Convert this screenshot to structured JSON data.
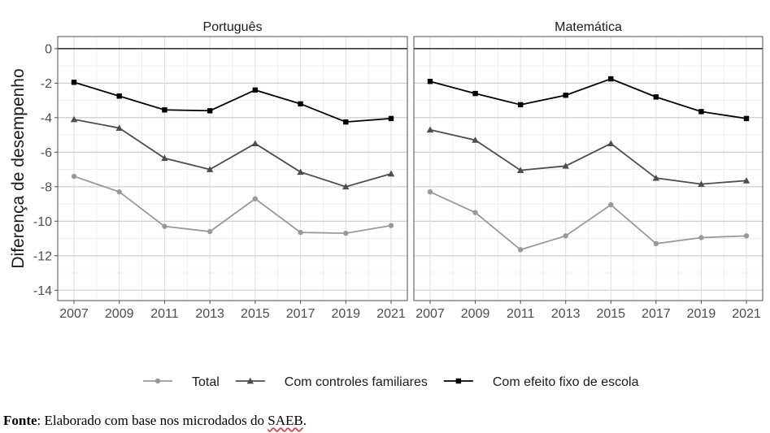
{
  "chart_data": {
    "type": "line",
    "ylabel": "Diferença de desempenho",
    "ylim": [
      -14.6,
      0.7
    ],
    "yticks": [
      0,
      -2,
      -4,
      -6,
      -8,
      -10,
      -12,
      -14
    ],
    "ytick_labels": [
      "0",
      "-2",
      "-4",
      "-6",
      "-8",
      "-10",
      "-12",
      "-14"
    ],
    "x": [
      2007,
      2009,
      2011,
      2013,
      2015,
      2017,
      2019,
      2021
    ],
    "xtick_labels": [
      "2007",
      "2009",
      "2011",
      "2013",
      "2015",
      "2017",
      "2019",
      "2021"
    ],
    "reference_line": 0,
    "grid": true,
    "legend_position": "bottom",
    "legend": [
      {
        "label": "Total",
        "color": "#999999",
        "marker": "circle"
      },
      {
        "label": "Com controles familiares",
        "color": "#4d4d4d",
        "marker": "triangle"
      },
      {
        "label": "Com efeito fixo de escola",
        "color": "#000000",
        "marker": "square"
      }
    ],
    "panels": [
      {
        "title": "Português",
        "series": [
          {
            "name": "Total",
            "values": [
              -7.4,
              -8.3,
              -10.3,
              -10.6,
              -8.7,
              -10.65,
              -10.7,
              -10.25
            ]
          },
          {
            "name": "Com controles familiares",
            "values": [
              -4.1,
              -4.6,
              -6.35,
              -7.0,
              -5.5,
              -7.15,
              -8.0,
              -7.25
            ]
          },
          {
            "name": "Com efeito fixo de escola",
            "values": [
              -1.95,
              -2.75,
              -3.55,
              -3.6,
              -2.4,
              -3.2,
              -4.25,
              -4.05
            ]
          }
        ]
      },
      {
        "title": "Matemática",
        "series": [
          {
            "name": "Total",
            "values": [
              -8.3,
              -9.5,
              -11.65,
              -10.85,
              -9.05,
              -11.3,
              -10.95,
              -10.85
            ]
          },
          {
            "name": "Com controles familiares",
            "values": [
              -4.7,
              -5.3,
              -7.05,
              -6.8,
              -5.5,
              -7.5,
              -7.85,
              -7.65
            ]
          },
          {
            "name": "Com efeito fixo de escola",
            "values": [
              -1.9,
              -2.6,
              -3.25,
              -2.7,
              -1.75,
              -2.8,
              -3.65,
              -4.05
            ]
          }
        ]
      }
    ]
  },
  "caption": {
    "bold": "Fonte",
    "text_before": ": Elaborado com base nos microdados do ",
    "underlined": "SAEB",
    "text_after": "."
  }
}
